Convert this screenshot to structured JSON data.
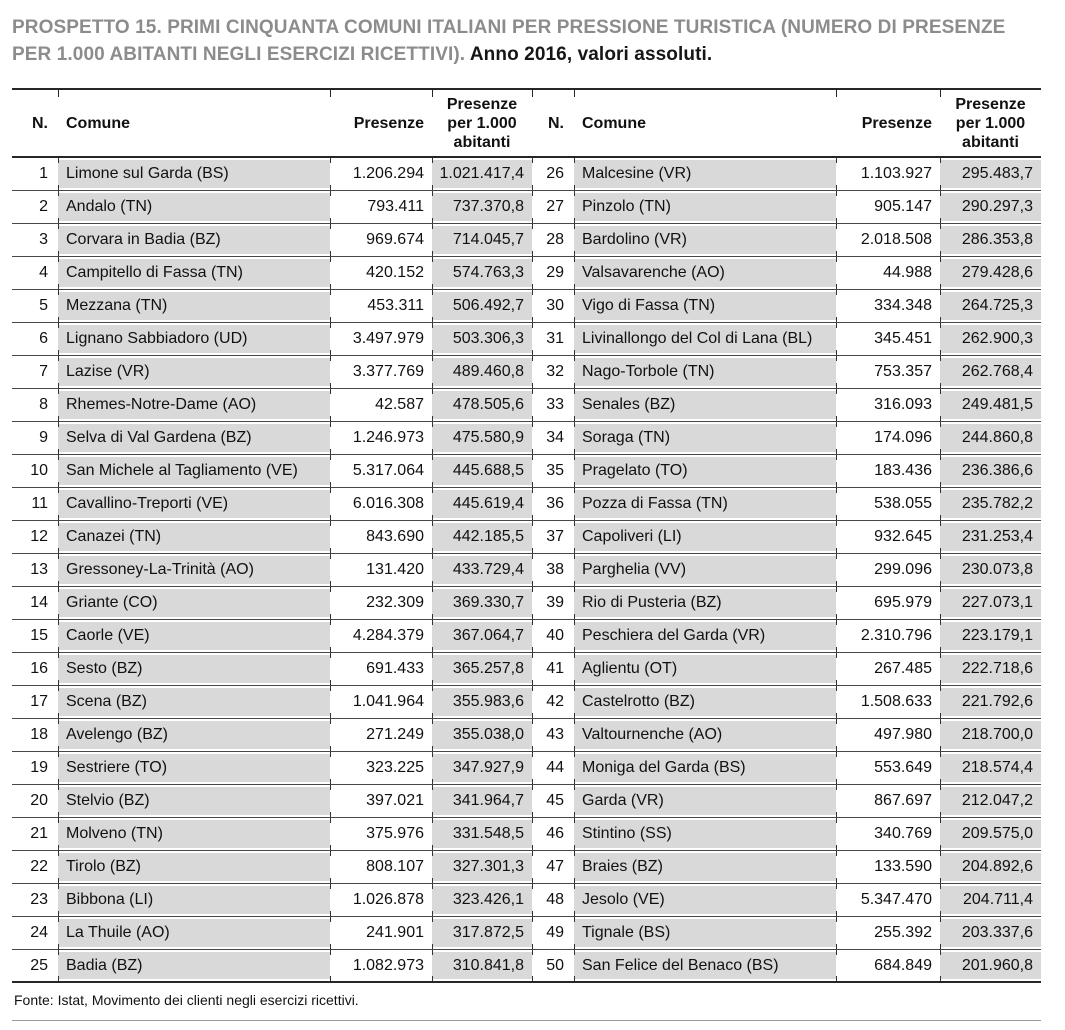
{
  "header": {
    "title_main": "PROSPETTO 15. PRIMI CINQUANTA COMUNI ITALIANI PER PRESSIONE TURISTICA (NUMERO DI PRESENZE PER 1.000 ABITANTI NEGLI ESERCIZI RICETTIVI).",
    "title_note": "Anno 2016, valori assoluti."
  },
  "table": {
    "columns": [
      "N.",
      "Comune",
      "Presenze",
      "Presenze per 1.000 abitanti"
    ],
    "rows": [
      {
        "n": "1",
        "comune": "Limone sul Garda (BS)",
        "presenze": "1.206.294",
        "per_1000": "1.021.417,4"
      },
      {
        "n": "2",
        "comune": "Andalo (TN)",
        "presenze": "793.411",
        "per_1000": "737.370,8"
      },
      {
        "n": "3",
        "comune": "Corvara in Badia (BZ)",
        "presenze": "969.674",
        "per_1000": "714.045,7"
      },
      {
        "n": "4",
        "comune": "Campitello di Fassa (TN)",
        "presenze": "420.152",
        "per_1000": "574.763,3"
      },
      {
        "n": "5",
        "comune": "Mezzana (TN)",
        "presenze": "453.311",
        "per_1000": "506.492,7"
      },
      {
        "n": "6",
        "comune": "Lignano Sabbiadoro (UD)",
        "presenze": "3.497.979",
        "per_1000": "503.306,3"
      },
      {
        "n": "7",
        "comune": "Lazise (VR)",
        "presenze": "3.377.769",
        "per_1000": "489.460,8"
      },
      {
        "n": "8",
        "comune": "Rhemes-Notre-Dame (AO)",
        "presenze": "42.587",
        "per_1000": "478.505,6"
      },
      {
        "n": "9",
        "comune": "Selva di Val Gardena (BZ)",
        "presenze": "1.246.973",
        "per_1000": "475.580,9"
      },
      {
        "n": "10",
        "comune": "San Michele al Tagliamento (VE)",
        "presenze": "5.317.064",
        "per_1000": "445.688,5"
      },
      {
        "n": "11",
        "comune": "Cavallino-Treporti (VE)",
        "presenze": "6.016.308",
        "per_1000": "445.619,4"
      },
      {
        "n": "12",
        "comune": "Canazei (TN)",
        "presenze": "843.690",
        "per_1000": "442.185,5"
      },
      {
        "n": "13",
        "comune": "Gressoney-La-Trinità (AO)",
        "presenze": "131.420",
        "per_1000": "433.729,4"
      },
      {
        "n": "14",
        "comune": "Griante (CO)",
        "presenze": "232.309",
        "per_1000": "369.330,7"
      },
      {
        "n": "15",
        "comune": "Caorle (VE)",
        "presenze": "4.284.379",
        "per_1000": "367.064,7"
      },
      {
        "n": "16",
        "comune": "Sesto (BZ)",
        "presenze": "691.433",
        "per_1000": "365.257,8"
      },
      {
        "n": "17",
        "comune": "Scena (BZ)",
        "presenze": "1.041.964",
        "per_1000": "355.983,6"
      },
      {
        "n": "18",
        "comune": "Avelengo (BZ)",
        "presenze": "271.249",
        "per_1000": "355.038,0"
      },
      {
        "n": "19",
        "comune": "Sestriere (TO)",
        "presenze": "323.225",
        "per_1000": "347.927,9"
      },
      {
        "n": "20",
        "comune": "Stelvio (BZ)",
        "presenze": "397.021",
        "per_1000": "341.964,7"
      },
      {
        "n": "21",
        "comune": "Molveno (TN)",
        "presenze": "375.976",
        "per_1000": "331.548,5"
      },
      {
        "n": "22",
        "comune": "Tirolo (BZ)",
        "presenze": "808.107",
        "per_1000": "327.301,3"
      },
      {
        "n": "23",
        "comune": "Bibbona (LI)",
        "presenze": "1.026.878",
        "per_1000": "323.426,1"
      },
      {
        "n": "24",
        "comune": "La Thuile (AO)",
        "presenze": "241.901",
        "per_1000": "317.872,5"
      },
      {
        "n": "25",
        "comune": "Badia (BZ)",
        "presenze": "1.082.973",
        "per_1000": "310.841,8"
      },
      {
        "n": "26",
        "comune": "Malcesine (VR)",
        "presenze": "1.103.927",
        "per_1000": "295.483,7"
      },
      {
        "n": "27",
        "comune": "Pinzolo (TN)",
        "presenze": "905.147",
        "per_1000": "290.297,3"
      },
      {
        "n": "28",
        "comune": "Bardolino (VR)",
        "presenze": "2.018.508",
        "per_1000": "286.353,8"
      },
      {
        "n": "29",
        "comune": "Valsavarenche (AO)",
        "presenze": "44.988",
        "per_1000": "279.428,6"
      },
      {
        "n": "30",
        "comune": "Vigo di Fassa (TN)",
        "presenze": "334.348",
        "per_1000": "264.725,3"
      },
      {
        "n": "31",
        "comune": "Livinallongo del Col di Lana (BL)",
        "presenze": "345.451",
        "per_1000": "262.900,3"
      },
      {
        "n": "32",
        "comune": "Nago-Torbole (TN)",
        "presenze": "753.357",
        "per_1000": "262.768,4"
      },
      {
        "n": "33",
        "comune": "Senales (BZ)",
        "presenze": "316.093",
        "per_1000": "249.481,5"
      },
      {
        "n": "34",
        "comune": "Soraga (TN)",
        "presenze": "174.096",
        "per_1000": "244.860,8"
      },
      {
        "n": "35",
        "comune": "Pragelato (TO)",
        "presenze": "183.436",
        "per_1000": "236.386,6"
      },
      {
        "n": "36",
        "comune": "Pozza di Fassa (TN)",
        "presenze": "538.055",
        "per_1000": "235.782,2"
      },
      {
        "n": "37",
        "comune": "Capoliveri (LI)",
        "presenze": "932.645",
        "per_1000": "231.253,4"
      },
      {
        "n": "38",
        "comune": "Parghelia (VV)",
        "presenze": "299.096",
        "per_1000": "230.073,8"
      },
      {
        "n": "39",
        "comune": "Rio di Pusteria (BZ)",
        "presenze": "695.979",
        "per_1000": "227.073,1"
      },
      {
        "n": "40",
        "comune": "Peschiera del Garda (VR)",
        "presenze": "2.310.796",
        "per_1000": "223.179,1"
      },
      {
        "n": "41",
        "comune": "Aglientu (OT)",
        "presenze": "267.485",
        "per_1000": "222.718,6"
      },
      {
        "n": "42",
        "comune": "Castelrotto (BZ)",
        "presenze": "1.508.633",
        "per_1000": "221.792,6"
      },
      {
        "n": "43",
        "comune": "Valtournenche (AO)",
        "presenze": "497.980",
        "per_1000": "218.700,0"
      },
      {
        "n": "44",
        "comune": "Moniga del Garda (BS)",
        "presenze": "553.649",
        "per_1000": "218.574,4"
      },
      {
        "n": "45",
        "comune": "Garda (VR)",
        "presenze": "867.697",
        "per_1000": "212.047,2"
      },
      {
        "n": "46",
        "comune": "Stintino (SS)",
        "presenze": "340.769",
        "per_1000": "209.575,0"
      },
      {
        "n": "47",
        "comune": "Braies (BZ)",
        "presenze": "133.590",
        "per_1000": "204.892,6"
      },
      {
        "n": "48",
        "comune": "Jesolo (VE)",
        "presenze": "5.347.470",
        "per_1000": "204.711,4"
      },
      {
        "n": "49",
        "comune": "Tignale (BS)",
        "presenze": "255.392",
        "per_1000": "203.337,6"
      },
      {
        "n": "50",
        "comune": "San Felice del Benaco (BS)",
        "presenze": "684.849",
        "per_1000": "201.960,8"
      }
    ]
  },
  "footer": {
    "source": "Fonte: Istat, Movimento dei clienti negli esercizi ricettivi."
  },
  "colors": {
    "title_gray": "#8c8c8c",
    "cell_shade": "#d9d9d9",
    "rule_dark": "#262626",
    "row_line": "#474747"
  }
}
